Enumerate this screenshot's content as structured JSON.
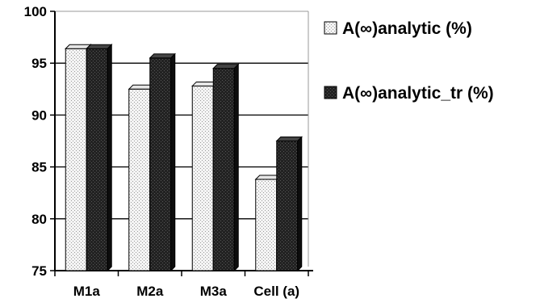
{
  "chart_data": {
    "type": "bar",
    "categories": [
      "M1a",
      "M2a",
      "M3a",
      "Cell (a)"
    ],
    "series": [
      {
        "name": "A(∞)analytic (%)",
        "values": [
          96.4,
          92.5,
          92.8,
          83.8
        ],
        "pattern": "dotted-light",
        "color": "#f2f2f2"
      },
      {
        "name": "A(∞)analytic_tr (%)",
        "values": [
          96.4,
          95.5,
          94.5,
          87.5
        ],
        "pattern": "dark",
        "color": "#1e1e1e"
      }
    ],
    "title": "",
    "xlabel": "",
    "ylabel": "",
    "ylim": [
      75,
      100
    ],
    "yticks": [
      "75",
      "80",
      "85",
      "90",
      "95",
      "100"
    ],
    "grid": true,
    "legend_position": "right",
    "bar_style": "3d"
  }
}
